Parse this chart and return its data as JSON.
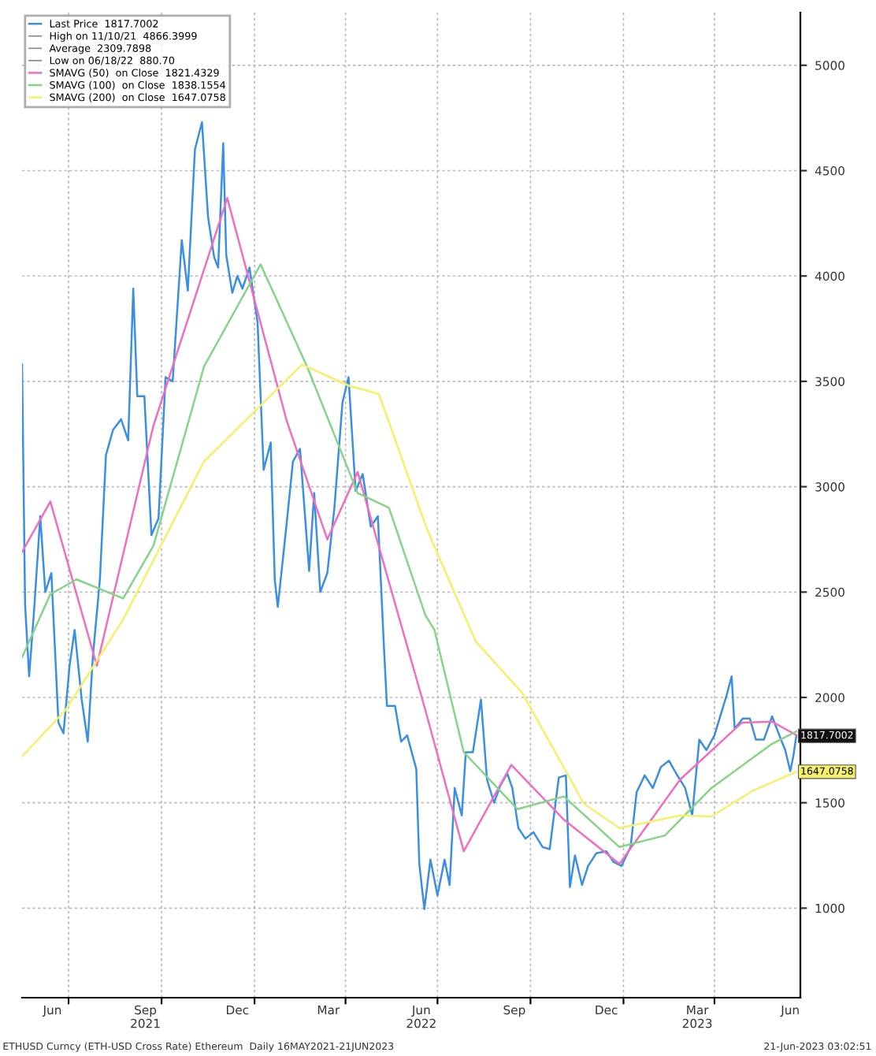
{
  "chart_data": {
    "type": "line",
    "xlim": [
      "2021-05-16",
      "2023-06-25"
    ],
    "ylim": [
      575,
      5250
    ],
    "yticks": [
      1000,
      1500,
      2000,
      2500,
      3000,
      3500,
      4000,
      4500,
      5000
    ],
    "xticks": [
      {
        "value": "2021-06-15",
        "label": "Jun"
      },
      {
        "value": "2021-07-01",
        "label": null
      },
      {
        "value": "2021-09-15",
        "label": "Sep\n2021"
      },
      {
        "value": "2021-10-01",
        "label": null
      },
      {
        "value": "2021-12-15",
        "label": "Dec"
      },
      {
        "value": "2022-01-01",
        "label": null
      },
      {
        "value": "2022-03-15",
        "label": "Mar"
      },
      {
        "value": "2022-04-01",
        "label": null
      },
      {
        "value": "2022-06-15",
        "label": "Jun\n2022"
      },
      {
        "value": "2022-07-01",
        "label": null
      },
      {
        "value": "2022-09-15",
        "label": "Sep"
      },
      {
        "value": "2022-10-01",
        "label": null
      },
      {
        "value": "2022-12-15",
        "label": "Dec"
      },
      {
        "value": "2023-01-01",
        "label": null
      },
      {
        "value": "2023-03-15",
        "label": "Mar\n2023"
      },
      {
        "value": "2023-04-01",
        "label": null
      },
      {
        "value": "2023-06-15",
        "label": "Jun"
      }
    ],
    "grid": true,
    "legend": "top left",
    "series": [
      {
        "name": "Last Price  1817.7002",
        "color": "#3a8fe0",
        "x": [
          "2021-05-16",
          "2021-05-19",
          "2021-05-23",
          "2021-05-28",
          "2021-06-03",
          "2021-06-08",
          "2021-06-14",
          "2021-06-21",
          "2021-06-26",
          "2021-07-02",
          "2021-07-07",
          "2021-07-14",
          "2021-07-20",
          "2021-07-25",
          "2021-08-01",
          "2021-08-07",
          "2021-08-14",
          "2021-08-22",
          "2021-08-29",
          "2021-09-03",
          "2021-09-07",
          "2021-09-14",
          "2021-09-21",
          "2021-09-28",
          "2021-10-05",
          "2021-10-12",
          "2021-10-21",
          "2021-10-27",
          "2021-11-03",
          "2021-11-10",
          "2021-11-16",
          "2021-11-22",
          "2021-11-26",
          "2021-12-01",
          "2021-12-04",
          "2021-12-10",
          "2021-12-15",
          "2021-12-20",
          "2021-12-27",
          "2022-01-04",
          "2022-01-10",
          "2022-01-17",
          "2022-01-21",
          "2022-01-24",
          "2022-02-01",
          "2022-02-08",
          "2022-02-15",
          "2022-02-24",
          "2022-03-01",
          "2022-03-07",
          "2022-03-14",
          "2022-03-21",
          "2022-03-29",
          "2022-04-04",
          "2022-04-11",
          "2022-04-18",
          "2022-04-26",
          "2022-05-03",
          "2022-05-09",
          "2022-05-12",
          "2022-05-20",
          "2022-05-26",
          "2022-06-01",
          "2022-06-10",
          "2022-06-13",
          "2022-06-18",
          "2022-06-24",
          "2022-07-01",
          "2022-07-08",
          "2022-07-13",
          "2022-07-18",
          "2022-07-25",
          "2022-07-29",
          "2022-08-05",
          "2022-08-13",
          "2022-08-19",
          "2022-08-26",
          "2022-09-01",
          "2022-09-08",
          "2022-09-13",
          "2022-09-19",
          "2022-09-26",
          "2022-10-04",
          "2022-10-13",
          "2022-10-20",
          "2022-10-29",
          "2022-11-05",
          "2022-11-09",
          "2022-11-14",
          "2022-11-21",
          "2022-11-27",
          "2022-12-05",
          "2022-12-15",
          "2022-12-22",
          "2022-12-30",
          "2023-01-08",
          "2023-01-14",
          "2023-01-22",
          "2023-01-30",
          "2023-02-07",
          "2023-02-15",
          "2023-02-22",
          "2023-03-03",
          "2023-03-10",
          "2023-03-17",
          "2023-03-24",
          "2023-04-01",
          "2023-04-13",
          "2023-04-18",
          "2023-04-21",
          "2023-04-29",
          "2023-05-06",
          "2023-05-12",
          "2023-05-20",
          "2023-05-28",
          "2023-06-05",
          "2023-06-10",
          "2023-06-15",
          "2023-06-18",
          "2023-06-21"
        ],
        "values": [
          3580,
          2440,
          2100,
          2420,
          2860,
          2500,
          2590,
          1880,
          1830,
          2150,
          2320,
          1990,
          1790,
          2190,
          2560,
          3150,
          3270,
          3320,
          3220,
          3940,
          3430,
          3430,
          2770,
          2850,
          3520,
          3500,
          4170,
          3930,
          4600,
          4730,
          4280,
          4090,
          4040,
          4630,
          4100,
          3920,
          4000,
          3940,
          4040,
          3780,
          3080,
          3210,
          2560,
          2430,
          2790,
          3120,
          3180,
          2600,
          2970,
          2500,
          2590,
          2900,
          3400,
          3520,
          2980,
          3060,
          2810,
          2860,
          2240,
          1960,
          1960,
          1790,
          1820,
          1660,
          1210,
          995,
          1230,
          1060,
          1230,
          1110,
          1570,
          1440,
          1740,
          1740,
          1990,
          1610,
          1500,
          1580,
          1640,
          1570,
          1380,
          1330,
          1360,
          1290,
          1280,
          1620,
          1630,
          1100,
          1250,
          1110,
          1200,
          1260,
          1270,
          1220,
          1200,
          1290,
          1550,
          1630,
          1570,
          1670,
          1700,
          1640,
          1570,
          1440,
          1800,
          1750,
          1820,
          2010,
          2100,
          1850,
          1900,
          1900,
          1800,
          1800,
          1910,
          1810,
          1750,
          1650,
          1720,
          1818
        ]
      },
      {
        "name": "SMAVG (50)  on Close  1821.4329",
        "color": "#f06ec0",
        "x": [
          "2021-05-16",
          "2021-06-13",
          "2021-07-29",
          "2021-09-23",
          "2021-12-05",
          "2022-02-02",
          "2022-03-14",
          "2022-04-13",
          "2022-06-19",
          "2022-07-27",
          "2022-09-12",
          "2022-11-03",
          "2022-12-28",
          "2023-02-26",
          "2023-04-28",
          "2023-05-28",
          "2023-06-21"
        ],
        "values": [
          2690,
          2930,
          2150,
          3290,
          4370,
          3310,
          2750,
          3070,
          1940,
          1270,
          1680,
          1420,
          1210,
          1610,
          1880,
          1885,
          1821
        ]
      },
      {
        "name": "SMAVG (100)  on Close  1838.1554",
        "color": "#86d486",
        "x": [
          "2021-05-16",
          "2021-06-13",
          "2021-07-09",
          "2021-08-24",
          "2021-09-23",
          "2021-11-12",
          "2022-01-07",
          "2022-02-22",
          "2022-04-13",
          "2022-05-14",
          "2022-06-19",
          "2022-06-28",
          "2022-07-27",
          "2022-09-18",
          "2022-11-03",
          "2022-12-28",
          "2023-02-11",
          "2023-03-29",
          "2023-05-28",
          "2023-06-21"
        ],
        "values": [
          2190,
          2490,
          2560,
          2470,
          2720,
          3570,
          4055,
          3570,
          2970,
          2900,
          2390,
          2320,
          1740,
          1470,
          1530,
          1290,
          1345,
          1570,
          1780,
          1838
        ]
      },
      {
        "name": "SMAVG (200)  on Close  1647.0758",
        "color": "#f5f06a",
        "x": [
          "2021-05-16",
          "2021-06-28",
          "2021-08-24",
          "2021-11-12",
          "2022-02-17",
          "2022-04-04",
          "2022-05-04",
          "2022-06-19",
          "2022-06-28",
          "2022-08-08",
          "2022-09-23",
          "2022-11-23",
          "2022-12-28",
          "2023-02-26",
          "2023-03-29",
          "2023-05-08",
          "2023-06-21"
        ],
        "values": [
          1720,
          1940,
          2370,
          3120,
          3580,
          3480,
          3440,
          2820,
          2715,
          2265,
          2020,
          1495,
          1380,
          1440,
          1435,
          1555,
          1647
        ]
      }
    ],
    "annotations": [
      "High on 11/10/21  4866.3999",
      "Average  2309.7898",
      "Low on 06/18/22  880.70",
      "ETHUSD Curncy (ETH-USD Cross Rate) Ethereum  Daily 16MAY2021-21JUN2023",
      "21-Jun-2023 03:02:51",
      {
        "text": "1817.7002",
        "x": "2023-06-21",
        "y": 1817.7002
      },
      {
        "text": "1647.0758",
        "x": "2023-06-21",
        "y": 1647.0758
      }
    ]
  }
}
